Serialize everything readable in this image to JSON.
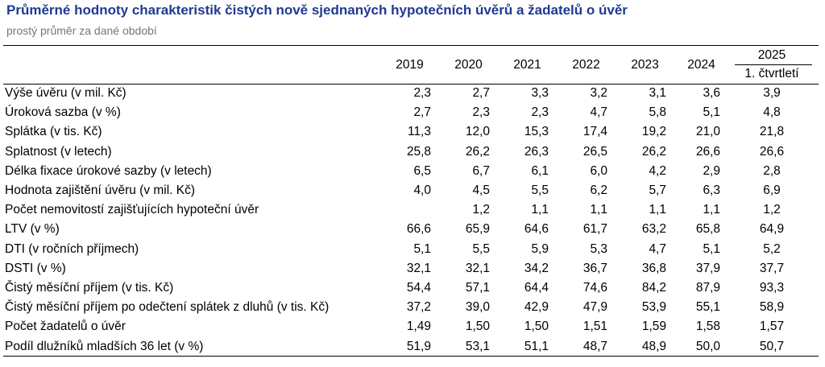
{
  "title": "Průměrné hodnoty charakteristik čistých nově sjednaných hypotečních úvěrů a žadatelů o úvěr",
  "subtitle": "prostý průměr za dané období",
  "columns": [
    "2019",
    "2020",
    "2021",
    "2022",
    "2023",
    "2024",
    "2025"
  ],
  "last_column_subheader": "1. čtvrtletí",
  "rows": [
    {
      "label": "Výše úvěru (v mil. Kč)",
      "values": [
        "2,3",
        "2,7",
        "3,3",
        "3,2",
        "3,1",
        "3,6",
        "3,9"
      ]
    },
    {
      "label": "Úroková sazba (v %)",
      "values": [
        "2,7",
        "2,3",
        "2,3",
        "4,7",
        "5,8",
        "5,1",
        "4,8"
      ]
    },
    {
      "label": "Splátka (v tis. Kč)",
      "values": [
        "11,3",
        "12,0",
        "15,3",
        "17,4",
        "19,2",
        "21,0",
        "21,8"
      ]
    },
    {
      "label": "Splatnost (v letech)",
      "values": [
        "25,8",
        "26,2",
        "26,3",
        "26,5",
        "26,2",
        "26,6",
        "26,6"
      ]
    },
    {
      "label": "Délka fixace úrokové sazby (v letech)",
      "values": [
        "6,5",
        "6,7",
        "6,1",
        "6,0",
        "4,2",
        "2,9",
        "2,8"
      ]
    },
    {
      "label": "Hodnota zajištění úvěru (v mil. Kč)",
      "values": [
        "4,0",
        "4,5",
        "5,5",
        "6,2",
        "5,7",
        "6,3",
        "6,9"
      ]
    },
    {
      "label": "Počet nemovitostí zajišťujících hypoteční úvěr",
      "values": [
        "",
        "1,2",
        "1,1",
        "1,1",
        "1,1",
        "1,1",
        "1,2"
      ]
    },
    {
      "label": "LTV (v %)",
      "values": [
        "66,6",
        "65,9",
        "64,6",
        "61,7",
        "63,2",
        "65,8",
        "64,9"
      ]
    },
    {
      "label": "DTI (v ročních příjmech)",
      "values": [
        "5,1",
        "5,5",
        "5,9",
        "5,3",
        "4,7",
        "5,1",
        "5,2"
      ]
    },
    {
      "label": "DSTI (v %)",
      "values": [
        "32,1",
        "32,1",
        "34,2",
        "36,7",
        "36,8",
        "37,9",
        "37,7"
      ]
    },
    {
      "label": "Čistý měsíční příjem (v tis. Kč)",
      "values": [
        "54,4",
        "57,1",
        "64,4",
        "74,6",
        "84,2",
        "87,9",
        "93,3"
      ]
    },
    {
      "label": "Čistý měsíční příjem po odečtení splátek z dluhů (v tis. Kč)",
      "values": [
        "37,2",
        "39,0",
        "42,9",
        "47,9",
        "53,9",
        "55,1",
        "58,9"
      ]
    },
    {
      "label": "Počet žadatelů o úvěr",
      "values": [
        "1,49",
        "1,50",
        "1,50",
        "1,51",
        "1,59",
        "1,58",
        "1,57"
      ]
    },
    {
      "label": "Podíl dlužníků mladších 36 let (v %)",
      "values": [
        "51,9",
        "53,1",
        "51,1",
        "48,7",
        "48,9",
        "50,0",
        "50,7"
      ]
    }
  ]
}
